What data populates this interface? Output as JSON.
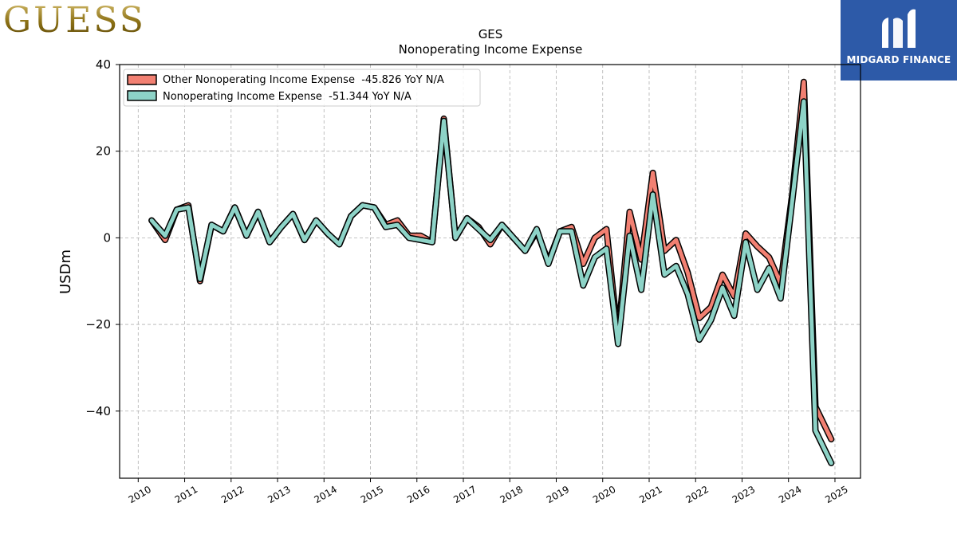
{
  "logos": {
    "left_brand": "GUESS",
    "right_brand": "MIDGARD FINANCE"
  },
  "colors": {
    "series1": "#f28072",
    "series2": "#8dd3c7",
    "outline": "#000000",
    "grid": "#b0b0b0"
  },
  "chart_data": {
    "type": "line",
    "title": "GES",
    "subtitle": "Nonoperating Income Expense",
    "xlabel": "",
    "ylabel": "USDm",
    "xlim": [
      2009.6,
      2025.55
    ],
    "ylim": [
      -55.5,
      40
    ],
    "xticks": [
      "2010",
      "2011",
      "2012",
      "2013",
      "2014",
      "2015",
      "2016",
      "2017",
      "2018",
      "2019",
      "2020",
      "2021",
      "2022",
      "2023",
      "2024",
      "2025"
    ],
    "yticks": [
      {
        "value": 40,
        "label": "40"
      },
      {
        "value": 20,
        "label": "20"
      },
      {
        "value": 0,
        "label": "0"
      },
      {
        "value": -20,
        "label": "−20"
      },
      {
        "value": -40,
        "label": "−40"
      }
    ],
    "grid": true,
    "legend_position": "top-left",
    "x": [
      2010.29,
      2010.58,
      2010.83,
      2011.08,
      2011.33,
      2011.58,
      2011.83,
      2012.08,
      2012.33,
      2012.58,
      2012.83,
      2013.08,
      2013.33,
      2013.58,
      2013.83,
      2014.08,
      2014.33,
      2014.58,
      2014.83,
      2015.08,
      2015.33,
      2015.58,
      2015.83,
      2016.08,
      2016.33,
      2016.58,
      2016.83,
      2017.08,
      2017.33,
      2017.58,
      2017.83,
      2018.08,
      2018.33,
      2018.58,
      2018.83,
      2019.08,
      2019.33,
      2019.58,
      2019.83,
      2020.08,
      2020.33,
      2020.58,
      2020.83,
      2021.08,
      2021.33,
      2021.58,
      2021.83,
      2022.08,
      2022.33,
      2022.58,
      2022.83,
      2023.08,
      2023.33,
      2023.58,
      2023.83,
      2024.08,
      2024.33,
      2024.58,
      2024.92
    ],
    "series": [
      {
        "name": "Other Nonoperating Income Expense  -45.826 YoY N/A",
        "values": [
          4.0,
          -0.5,
          6.5,
          7.5,
          -10.0,
          3.0,
          1.5,
          7.0,
          0.5,
          6.0,
          -1.0,
          2.5,
          5.5,
          -0.5,
          4.0,
          1.0,
          -1.5,
          5.0,
          7.5,
          7.0,
          3.0,
          4.0,
          0.5,
          0.5,
          -1.0,
          27.5,
          0.0,
          4.5,
          2.5,
          -1.5,
          3.0,
          0.0,
          -3.0,
          1.5,
          -5.5,
          1.5,
          2.5,
          -6.0,
          0.0,
          2.0,
          -23.0,
          6.0,
          -5.0,
          15.0,
          -3.0,
          -0.5,
          -8.0,
          -18.5,
          -16.0,
          -8.5,
          -13.5,
          1.0,
          -2.0,
          -4.5,
          -10.5,
          10.0,
          36.0,
          -39.0,
          -46.5
        ]
      },
      {
        "name": "Nonoperating Income Expense  -51.344 YoY N/A",
        "values": [
          4.0,
          0.5,
          6.5,
          7.0,
          -9.5,
          3.0,
          1.5,
          7.0,
          0.5,
          6.0,
          -1.0,
          2.5,
          5.5,
          -0.5,
          4.0,
          1.0,
          -1.5,
          5.0,
          7.5,
          7.0,
          2.5,
          3.0,
          0.0,
          -0.5,
          -1.0,
          27.0,
          0.0,
          4.5,
          2.0,
          -0.5,
          3.0,
          0.0,
          -3.0,
          2.0,
          -6.0,
          1.5,
          1.5,
          -11.0,
          -4.5,
          -2.5,
          -24.5,
          0.5,
          -12.0,
          10.0,
          -8.5,
          -6.5,
          -13.0,
          -23.5,
          -19.0,
          -11.5,
          -18.0,
          -1.0,
          -12.0,
          -7.0,
          -14.0,
          8.5,
          31.5,
          -44.5,
          -52.0
        ]
      }
    ]
  }
}
